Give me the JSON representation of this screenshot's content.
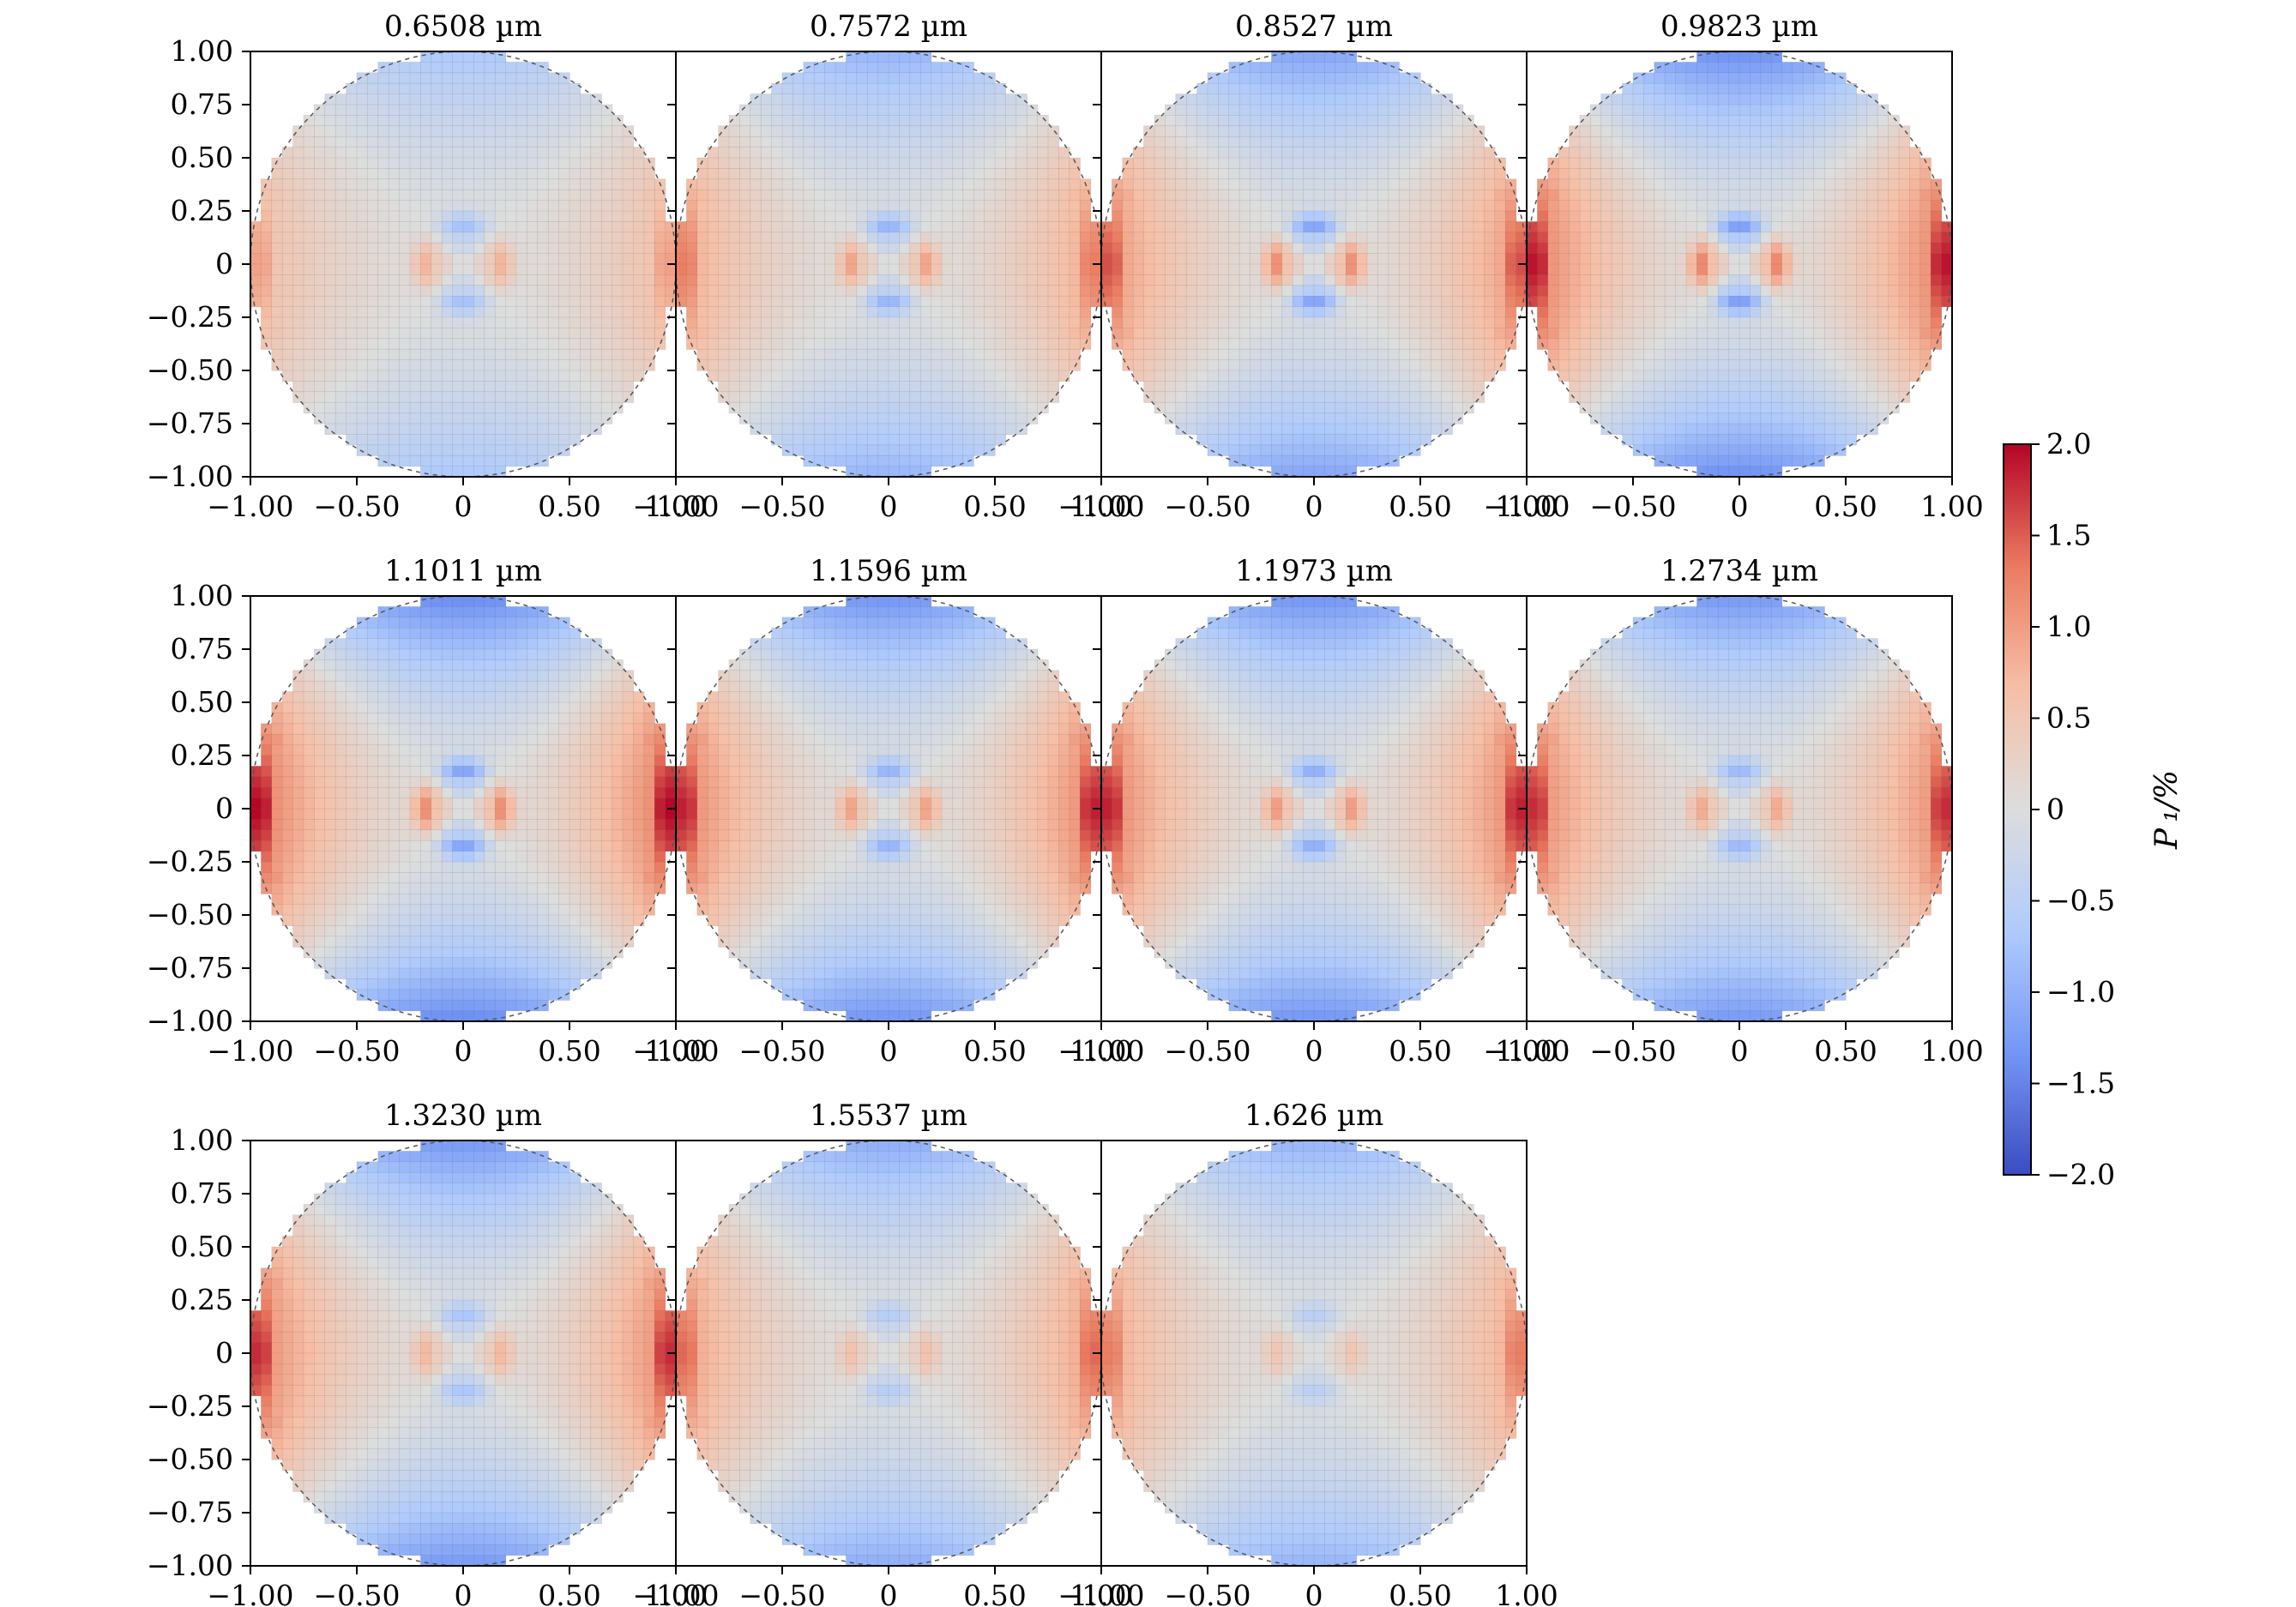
{
  "chart_data": {
    "type": "heatmap",
    "layout": {
      "rows": 3,
      "cols": 4
    },
    "panels": [
      {
        "title": "0.6508 µm",
        "amplitude": 0.7,
        "center_strength": 0.55
      },
      {
        "title": "0.7572 µm",
        "amplitude": 0.95,
        "center_strength": 0.65
      },
      {
        "title": "0.8527 µm",
        "amplitude": 1.15,
        "center_strength": 0.8
      },
      {
        "title": "0.9823 µm",
        "amplitude": 1.4,
        "center_strength": 0.85
      },
      {
        "title": "1.1011 µm",
        "amplitude": 1.45,
        "center_strength": 0.8
      },
      {
        "title": "1.1596 µm",
        "amplitude": 1.35,
        "center_strength": 0.65
      },
      {
        "title": "1.1973 µm",
        "amplitude": 1.35,
        "center_strength": 0.7
      },
      {
        "title": "1.2734 µm",
        "amplitude": 1.3,
        "center_strength": 0.6
      },
      {
        "title": "1.3230 µm",
        "amplitude": 1.3,
        "center_strength": 0.5
      },
      {
        "title": "1.5537 µm",
        "amplitude": 1.05,
        "center_strength": 0.4
      },
      {
        "title": "1.626 µm",
        "amplitude": 0.95,
        "center_strength": 0.35
      }
    ],
    "x_ticks": [
      "−1.00",
      "−0.50",
      "0",
      "0.50",
      "1.00"
    ],
    "y_ticks": [
      "1.00",
      "0.75",
      "0.50",
      "0.25",
      "0",
      "−0.25",
      "−0.50",
      "−0.75",
      "−1.00"
    ],
    "xlim": [
      -1,
      1
    ],
    "ylim": [
      -1,
      1
    ],
    "grid_cells": 40,
    "colorbar": {
      "label": "P ₁/%",
      "vmin": -2.0,
      "vmax": 2.0,
      "ticks": [
        "2.0",
        "1.5",
        "1.0",
        "0.5",
        "0",
        "−0.5",
        "−1.0",
        "−1.5",
        "−2.0"
      ],
      "colormap": "coolwarm",
      "colors": [
        "#3b4cc0",
        "#7396f5",
        "#b0cbfc",
        "#dcdddd",
        "#f6bfa6",
        "#ea7b60",
        "#b40426"
      ]
    }
  }
}
